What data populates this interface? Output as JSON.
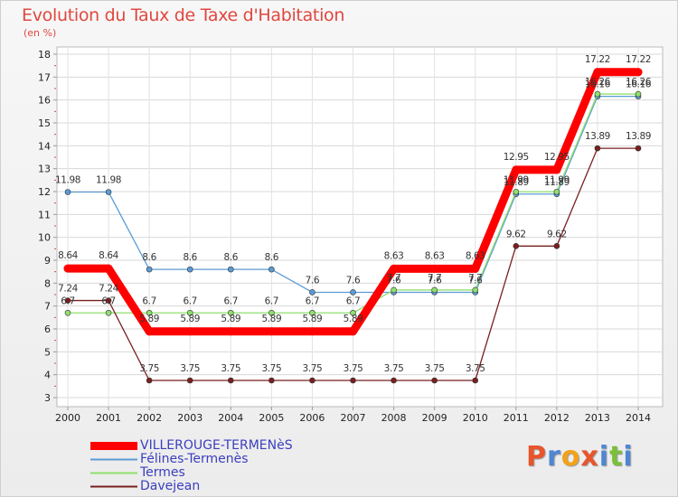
{
  "title": "Evolution du Taux de Taxe d'Habitation",
  "unit_label": "(en %)",
  "logo": {
    "letters": [
      "P",
      "r",
      "o",
      "x",
      "i",
      "t",
      "i"
    ],
    "colors": [
      "#e8542b",
      "#4f86d4",
      "#f2a21a",
      "#e8542b",
      "#4f86d4",
      "#7bbf3a",
      "#4f86d4"
    ]
  },
  "chart_data": {
    "type": "line",
    "x": [
      "2000",
      "2001",
      "2002",
      "2003",
      "2004",
      "2005",
      "2006",
      "2007",
      "2008",
      "2009",
      "2010",
      "2011",
      "2012",
      "2013",
      "2014"
    ],
    "ylim": [
      3,
      18
    ],
    "yticks": [
      "3",
      "4",
      "5",
      "6",
      "7",
      "8",
      "9",
      "10",
      "11",
      "12",
      "13",
      "14",
      "15",
      "16",
      "17",
      "18"
    ],
    "grid": true,
    "legend_position": "bottom-left",
    "series": [
      {
        "name": "VILLEROUGE-TERMENèS",
        "color": "#ff0000",
        "values": [
          8.64,
          8.64,
          5.89,
          5.89,
          5.89,
          5.89,
          5.89,
          5.89,
          8.63,
          8.63,
          8.63,
          12.95,
          12.95,
          17.22,
          17.22
        ],
        "labels": [
          "8.64",
          "8.64",
          "5.89",
          "5.89",
          "5.89",
          "5.89",
          "5.89",
          "5.89",
          "8.63",
          "8.63",
          "8.63",
          "12.95",
          "12.95",
          "17.22",
          "17.22"
        ]
      },
      {
        "name": "Félines-Termenès",
        "color": "#5b9bd5",
        "values": [
          11.98,
          11.98,
          8.6,
          8.6,
          8.6,
          8.6,
          7.6,
          7.6,
          7.6,
          7.6,
          7.6,
          11.89,
          11.89,
          16.16,
          16.16
        ],
        "labels": [
          "11.98",
          "11.98",
          "8.6",
          "8.6",
          "8.6",
          "8.6",
          "7.6",
          "7.6",
          "7.6",
          "7.6",
          "7.6",
          "11.89",
          "11.89",
          "16.16",
          "16.16"
        ]
      },
      {
        "name": "Termes",
        "color": "#8fe06e",
        "values": [
          6.7,
          6.7,
          6.7,
          6.7,
          6.7,
          6.7,
          6.7,
          6.7,
          7.7,
          7.7,
          7.7,
          11.99,
          11.99,
          16.26,
          16.26
        ],
        "labels": [
          "6.7",
          "6.7",
          "6.7",
          "6.7",
          "6.7",
          "6.7",
          "6.7",
          "6.7",
          "7.7",
          "7.7",
          "7.7",
          "11.99",
          "11.99",
          "16.26",
          "16.26"
        ]
      },
      {
        "name": "Davejean",
        "color": "#7a1f1f",
        "values": [
          7.24,
          7.24,
          3.75,
          3.75,
          3.75,
          3.75,
          3.75,
          3.75,
          3.75,
          3.75,
          3.75,
          9.62,
          9.62,
          13.89,
          13.89
        ],
        "labels": [
          "7.24",
          "7.24",
          "3.75",
          "3.75",
          "3.75",
          "3.75",
          "3.75",
          "3.75",
          "3.75",
          "3.75",
          "3.75",
          "9.62",
          "9.62",
          "13.89",
          "13.89"
        ]
      }
    ]
  }
}
